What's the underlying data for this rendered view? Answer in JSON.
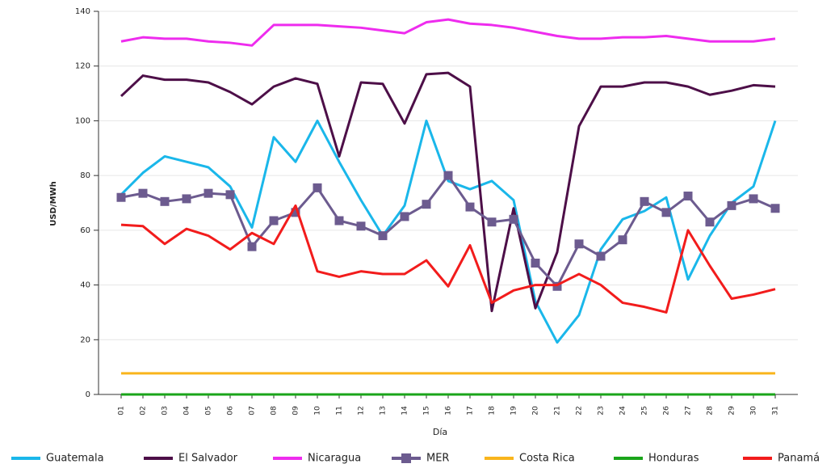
{
  "chart_data": {
    "type": "line",
    "x_label": "Día",
    "y_label": "USD/MWh",
    "categories": [
      "01",
      "02",
      "03",
      "04",
      "05",
      "06",
      "07",
      "08",
      "09",
      "10",
      "11",
      "12",
      "13",
      "14",
      "15",
      "16",
      "17",
      "18",
      "19",
      "20",
      "21",
      "22",
      "23",
      "24",
      "25",
      "26",
      "27",
      "28",
      "29",
      "30",
      "31"
    ],
    "ylim": [
      0,
      140
    ],
    "yticks": [
      0,
      20,
      40,
      60,
      80,
      100,
      120,
      140
    ],
    "grid": true,
    "legend": "bottom",
    "series": [
      {
        "name": "Guatemala",
        "color": "#1ab7ea",
        "values": [
          73,
          81,
          87,
          85,
          83,
          76,
          61,
          94,
          85,
          100,
          85,
          71,
          58,
          69,
          100,
          78,
          75,
          78,
          71,
          34,
          19,
          29,
          53,
          64,
          67,
          72,
          42,
          58,
          70,
          76,
          100
        ]
      },
      {
        "name": "El Salvador",
        "color": "#4d0f48",
        "values": [
          109,
          116.5,
          115,
          115,
          114,
          110.5,
          106,
          112.5,
          115.5,
          113.5,
          87,
          114,
          113.5,
          99,
          117,
          117.5,
          112.5,
          30.5,
          68,
          31.5,
          52,
          98,
          112.5,
          112.5,
          114,
          114,
          112.5,
          109.5,
          111,
          113,
          112.5
        ]
      },
      {
        "name": "Nicaragua",
        "color": "#ee2cee",
        "values": [
          129,
          130.5,
          130,
          130,
          129,
          128.5,
          127.5,
          135,
          135,
          135,
          134.5,
          134,
          133,
          132,
          136,
          137,
          135.5,
          135,
          134,
          132.5,
          131,
          130,
          130,
          130.5,
          130.5,
          131,
          130,
          129,
          129,
          129,
          130
        ]
      },
      {
        "name": "MER",
        "color": "#6c5b8f",
        "marker": "square",
        "values": [
          72,
          73.5,
          70.5,
          71.5,
          73.5,
          73,
          54,
          63.5,
          66.5,
          75.5,
          63.5,
          61.5,
          58,
          65,
          69.5,
          80,
          68.5,
          63,
          64,
          48,
          39.5,
          55,
          50.5,
          56.5,
          70.5,
          66.5,
          72.5,
          63,
          69,
          71.5,
          68
        ]
      },
      {
        "name": "Costa Rica",
        "color": "#f9b51c",
        "values": [
          7.7,
          7.7,
          7.7,
          7.7,
          7.7,
          7.7,
          7.7,
          7.7,
          7.7,
          7.7,
          7.7,
          7.7,
          7.7,
          7.7,
          7.7,
          7.7,
          7.7,
          7.7,
          7.7,
          7.7,
          7.7,
          7.7,
          7.7,
          7.7,
          7.7,
          7.7,
          7.7,
          7.7,
          7.7,
          7.7,
          7.7
        ]
      },
      {
        "name": "Honduras",
        "color": "#1aa51a",
        "values": [
          0,
          0,
          0,
          0,
          0,
          0,
          0,
          0,
          0,
          0,
          0,
          0,
          0,
          0,
          0,
          0,
          0,
          0,
          0,
          0,
          0,
          0,
          0,
          0,
          0,
          0,
          0,
          0,
          0,
          0,
          0
        ]
      },
      {
        "name": "Panamá",
        "color": "#f21c1c",
        "values": [
          62,
          61.5,
          55,
          60.5,
          58,
          53,
          59,
          55,
          69,
          45,
          43,
          45,
          44,
          44,
          49,
          39.5,
          54.5,
          33.5,
          38,
          40,
          40,
          44,
          40,
          33.5,
          32,
          30,
          60,
          47,
          35,
          36.5,
          38.5
        ]
      }
    ]
  }
}
